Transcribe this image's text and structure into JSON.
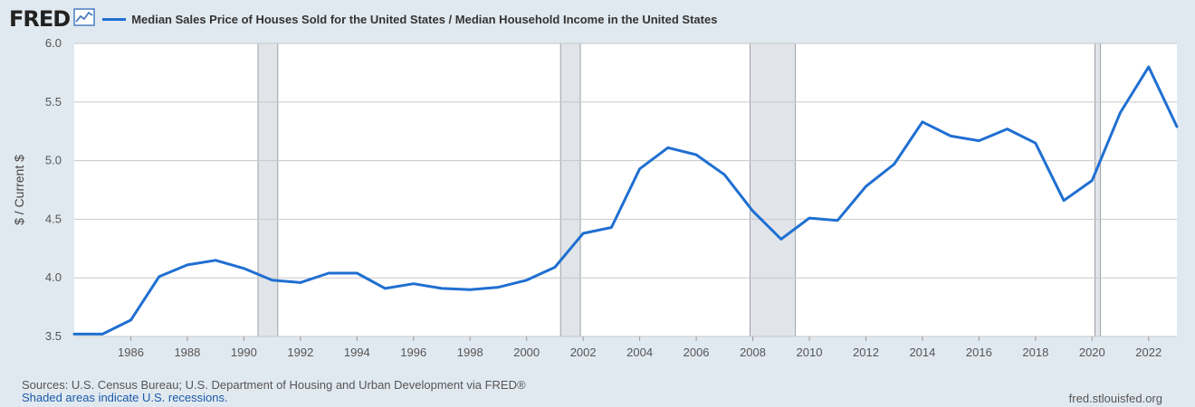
{
  "header": {
    "logo": "FRED",
    "logo_icon": "fred-chart-icon",
    "legend_label": "Median Sales Price of Houses Sold for the United States / Median Household Income in the United States"
  },
  "footer": {
    "sources": "Sources: U.S. Census Bureau; U.S. Department of Housing and Urban Development via FRED®",
    "shaded_note": "Shaded areas indicate U.S. recessions.",
    "site": "fred.stlouisfed.org"
  },
  "colors": {
    "line": "#1f6fd1",
    "recession": "#e1e5ea",
    "plot_bg": "#ffffff",
    "page_bg": "#e1e9f0",
    "grid": "#c8c8c8"
  },
  "chart_data": {
    "type": "line",
    "title": "",
    "xlabel": "",
    "ylabel": "$ / Current $",
    "xlim": [
      1984,
      2023
    ],
    "ylim": [
      3.5,
      6.0
    ],
    "yticks": [
      "3.5",
      "4.0",
      "4.5",
      "5.0",
      "5.5",
      "6.0"
    ],
    "xticks": [
      "1986",
      "1988",
      "1990",
      "1992",
      "1994",
      "1996",
      "1998",
      "2000",
      "2002",
      "2004",
      "2006",
      "2008",
      "2010",
      "2012",
      "2014",
      "2016",
      "2018",
      "2020",
      "2022"
    ],
    "grid": "horizontal",
    "legend": "top",
    "recessions": [
      [
        1990.5,
        1991.2
      ],
      [
        2001.2,
        2001.9
      ],
      [
        2007.9,
        2009.5
      ],
      [
        2020.1,
        2020.3
      ]
    ],
    "series": [
      {
        "name": "Median Sales Price of Houses Sold for the United States / Median Household Income in the United States",
        "x": [
          1984,
          1985,
          1986,
          1987,
          1988,
          1989,
          1990,
          1991,
          1992,
          1993,
          1994,
          1995,
          1996,
          1997,
          1998,
          1999,
          2000,
          2001,
          2002,
          2003,
          2004,
          2005,
          2006,
          2007,
          2008,
          2009,
          2010,
          2011,
          2012,
          2013,
          2014,
          2015,
          2016,
          2017,
          2018,
          2019,
          2020,
          2021,
          2022,
          2023
        ],
        "values": [
          3.52,
          3.52,
          3.64,
          4.01,
          4.11,
          4.15,
          4.08,
          3.98,
          3.96,
          4.04,
          4.04,
          3.91,
          3.95,
          3.91,
          3.9,
          3.92,
          3.98,
          4.09,
          4.38,
          4.43,
          4.93,
          5.11,
          5.05,
          4.88,
          4.57,
          4.33,
          4.51,
          4.49,
          4.78,
          4.97,
          5.33,
          5.21,
          5.17,
          5.27,
          5.15,
          4.66,
          4.83,
          5.41,
          5.8,
          5.29
        ]
      }
    ]
  }
}
